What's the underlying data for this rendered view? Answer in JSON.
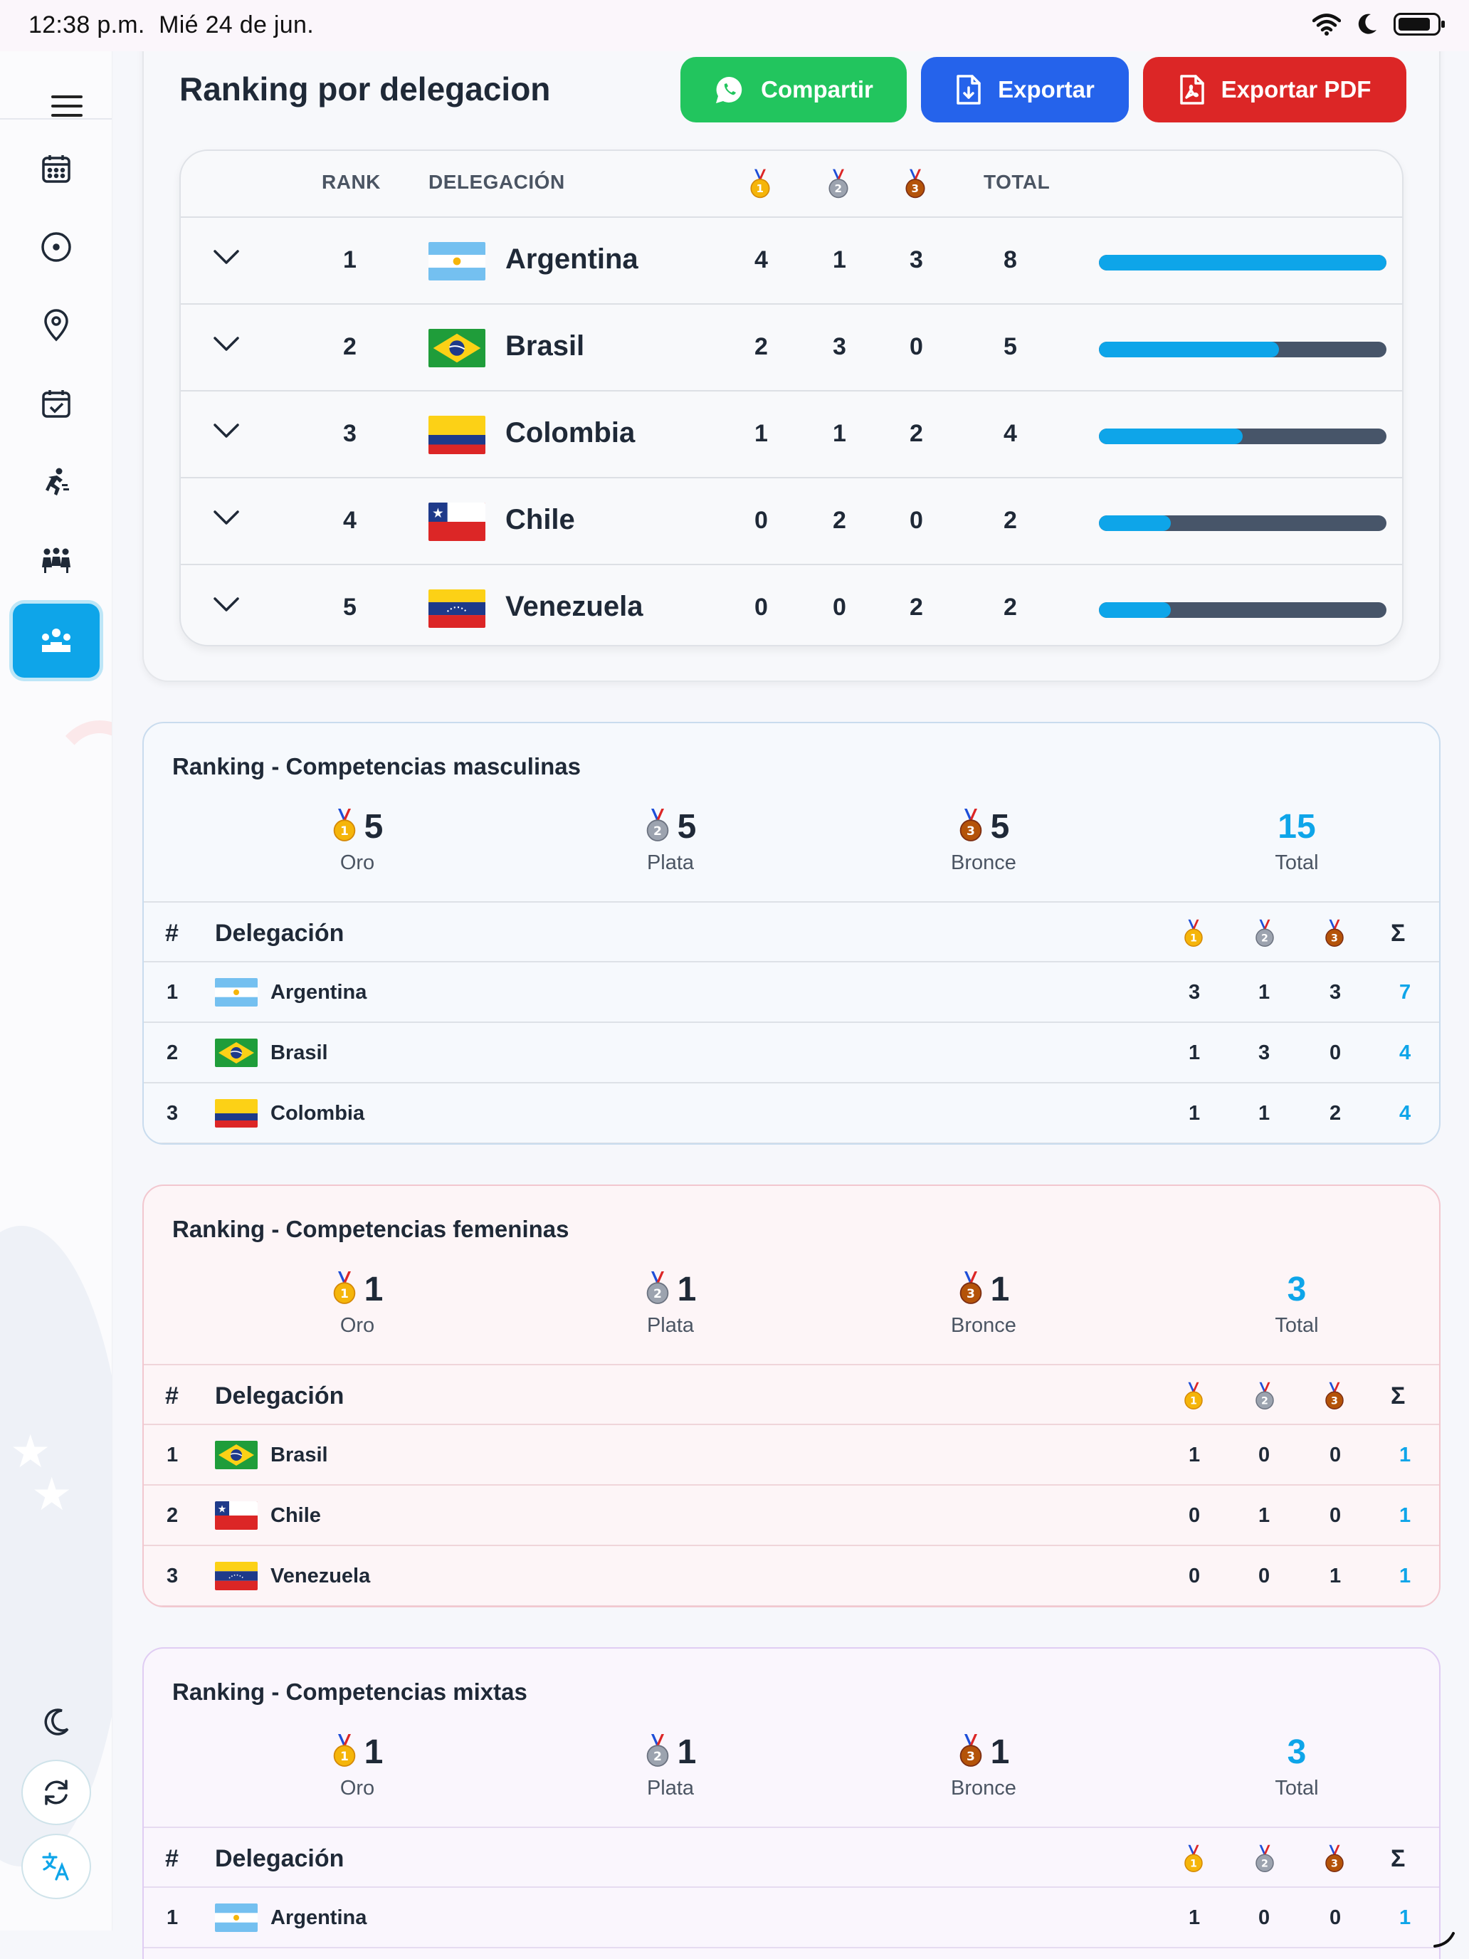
{
  "status": {
    "time": "12:38 p.m.",
    "date": "Mié 24 de jun."
  },
  "main": {
    "title": "Ranking por delegacion",
    "buttons": {
      "share": "Compartir",
      "export": "Exportar",
      "pdf": "Exportar PDF"
    },
    "table": {
      "headers": {
        "rank": "RANK",
        "delegation": "DELEGACIÓN",
        "total": "TOTAL"
      },
      "rows": [
        {
          "rank": "1",
          "country": "Argentina",
          "flag": "argentina",
          "gold": "4",
          "silver": "1",
          "bronze": "3",
          "total": "8",
          "share": 1.0
        },
        {
          "rank": "2",
          "country": "Brasil",
          "flag": "brasil",
          "gold": "2",
          "silver": "3",
          "bronze": "0",
          "total": "5",
          "share": 0.625
        },
        {
          "rank": "3",
          "country": "Colombia",
          "flag": "colombia",
          "gold": "1",
          "silver": "1",
          "bronze": "2",
          "total": "4",
          "share": 0.5
        },
        {
          "rank": "4",
          "country": "Chile",
          "flag": "chile",
          "gold": "0",
          "silver": "2",
          "bronze": "0",
          "total": "2",
          "share": 0.25
        },
        {
          "rank": "5",
          "country": "Venezuela",
          "flag": "venezuela",
          "gold": "0",
          "silver": "0",
          "bronze": "2",
          "total": "2",
          "share": 0.25
        }
      ]
    }
  },
  "sections": [
    {
      "title": "Ranking - Competencias masculinas",
      "summary": {
        "gold": "5",
        "silver": "5",
        "bronze": "5",
        "total": "15"
      },
      "labels": {
        "gold": "Oro",
        "silver": "Plata",
        "bronze": "Bronce",
        "total": "Total"
      },
      "headers": {
        "num": "#",
        "delegation": "Delegación",
        "sum": "Σ"
      },
      "rows": [
        {
          "num": "1",
          "country": "Argentina",
          "flag": "argentina",
          "gold": "3",
          "silver": "1",
          "bronze": "3",
          "sum": "7"
        },
        {
          "num": "2",
          "country": "Brasil",
          "flag": "brasil",
          "gold": "1",
          "silver": "3",
          "bronze": "0",
          "sum": "4"
        },
        {
          "num": "3",
          "country": "Colombia",
          "flag": "colombia",
          "gold": "1",
          "silver": "1",
          "bronze": "2",
          "sum": "4"
        }
      ]
    },
    {
      "title": "Ranking - Competencias femeninas",
      "summary": {
        "gold": "1",
        "silver": "1",
        "bronze": "1",
        "total": "3"
      },
      "labels": {
        "gold": "Oro",
        "silver": "Plata",
        "bronze": "Bronce",
        "total": "Total"
      },
      "headers": {
        "num": "#",
        "delegation": "Delegación",
        "sum": "Σ"
      },
      "rows": [
        {
          "num": "1",
          "country": "Brasil",
          "flag": "brasil",
          "gold": "1",
          "silver": "0",
          "bronze": "0",
          "sum": "1"
        },
        {
          "num": "2",
          "country": "Chile",
          "flag": "chile",
          "gold": "0",
          "silver": "1",
          "bronze": "0",
          "sum": "1"
        },
        {
          "num": "3",
          "country": "Venezuela",
          "flag": "venezuela",
          "gold": "0",
          "silver": "0",
          "bronze": "1",
          "sum": "1"
        }
      ]
    },
    {
      "title": "Ranking - Competencias mixtas",
      "summary": {
        "gold": "1",
        "silver": "1",
        "bronze": "1",
        "total": "3"
      },
      "labels": {
        "gold": "Oro",
        "silver": "Plata",
        "bronze": "Bronce",
        "total": "Total"
      },
      "headers": {
        "num": "#",
        "delegation": "Delegación",
        "sum": "Σ"
      },
      "rows": [
        {
          "num": "1",
          "country": "Argentina",
          "flag": "argentina",
          "gold": "1",
          "silver": "0",
          "bronze": "0",
          "sum": "1"
        }
      ]
    }
  ],
  "colors": {
    "accent": "#0ea5e9",
    "share": "#22c55e",
    "export": "#2563eb",
    "pdf": "#dc2626"
  }
}
